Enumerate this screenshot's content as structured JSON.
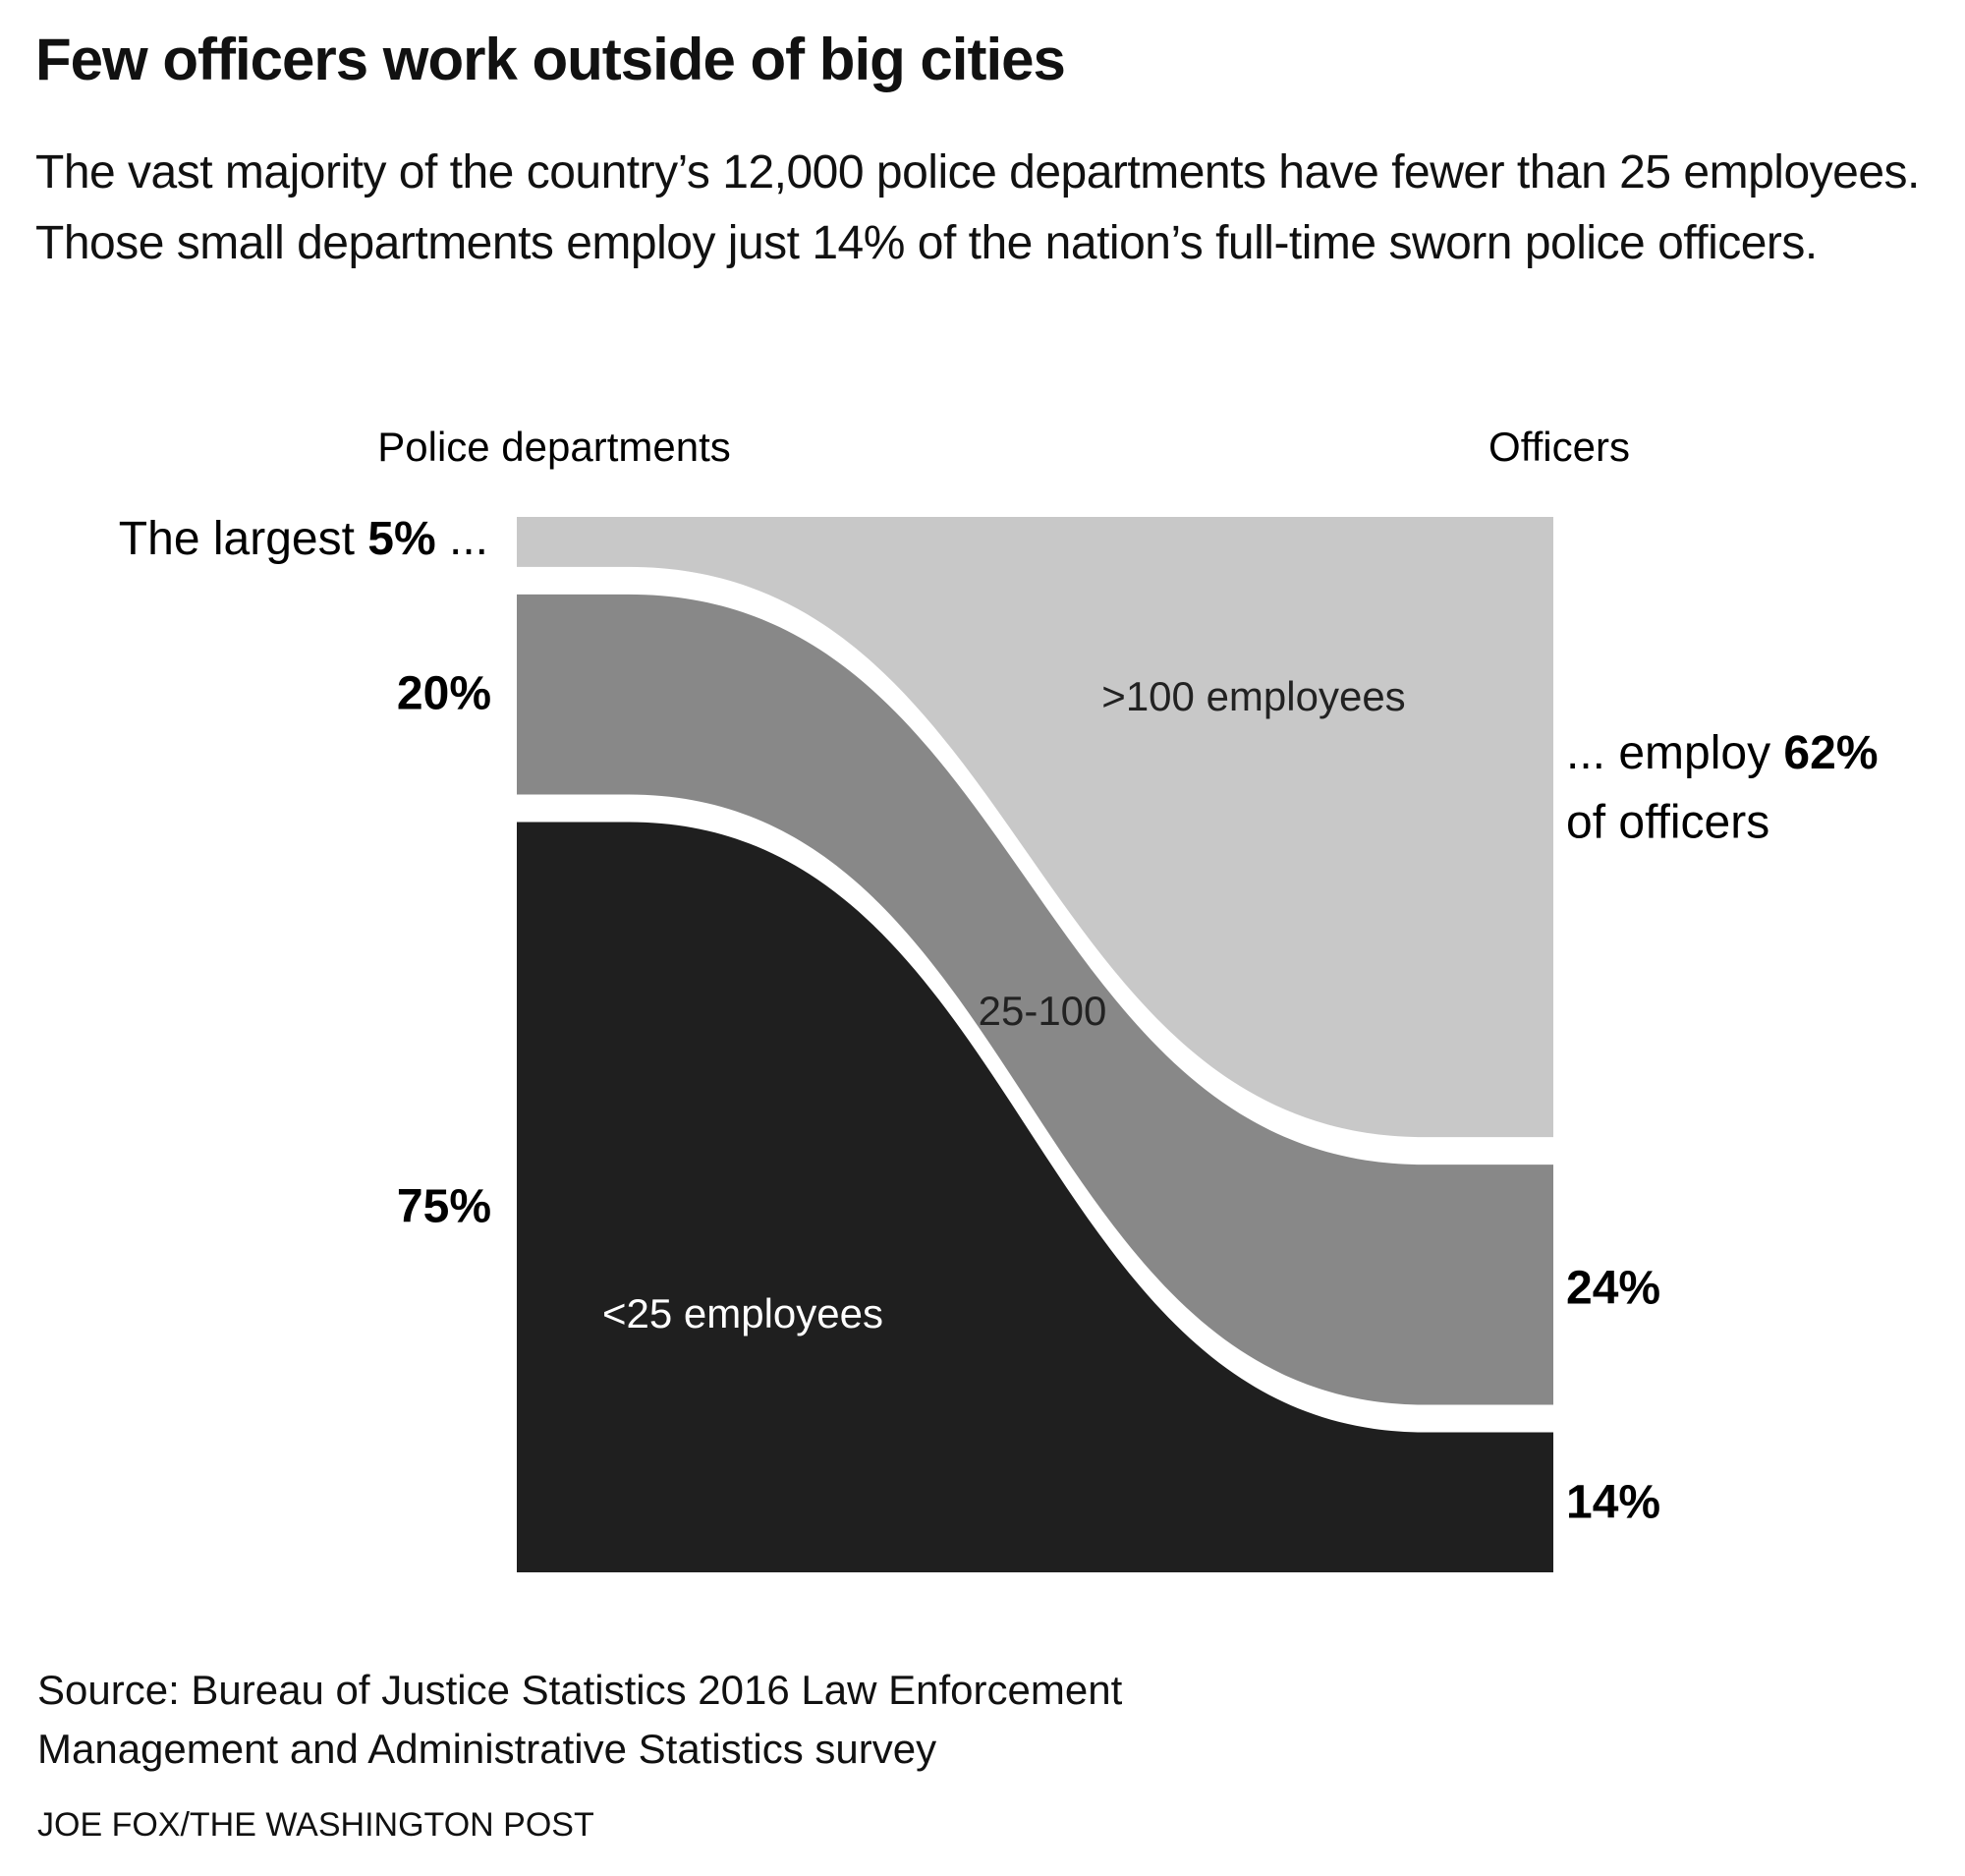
{
  "chart_data": {
    "type": "flow",
    "title": "Few officers work outside of big cities",
    "subtitle": "The vast majority of the country’s 12,000 police departments have fewer than 25 employees. Those small departments employ just 14% of the nation’s full-time sworn police officers.",
    "columns": [
      "Police departments",
      "Officers"
    ],
    "series": [
      {
        "name": ">100 employees",
        "color": "#c8c8c8",
        "values": [
          5,
          62
        ],
        "value_labels": [
          "5%",
          "62%"
        ]
      },
      {
        "name": "25-100",
        "color": "#888888",
        "values": [
          20,
          24
        ],
        "value_labels": [
          "20%",
          "24%"
        ]
      },
      {
        "name": "<25 employees",
        "color": "#1f1f1f",
        "values": [
          75,
          14
        ],
        "value_labels": [
          "75%",
          "14%"
        ]
      }
    ],
    "annotations": {
      "left_prefix": "The largest",
      "left_suffix": "...",
      "right_prefix": "... employ",
      "right_suffix": "of officers"
    },
    "source": "Source: Bureau of Justice Statistics 2016 Law Enforcement Management and Administrative Statistics survey",
    "credit": "JOE FOX/THE WASHINGTON POST"
  }
}
